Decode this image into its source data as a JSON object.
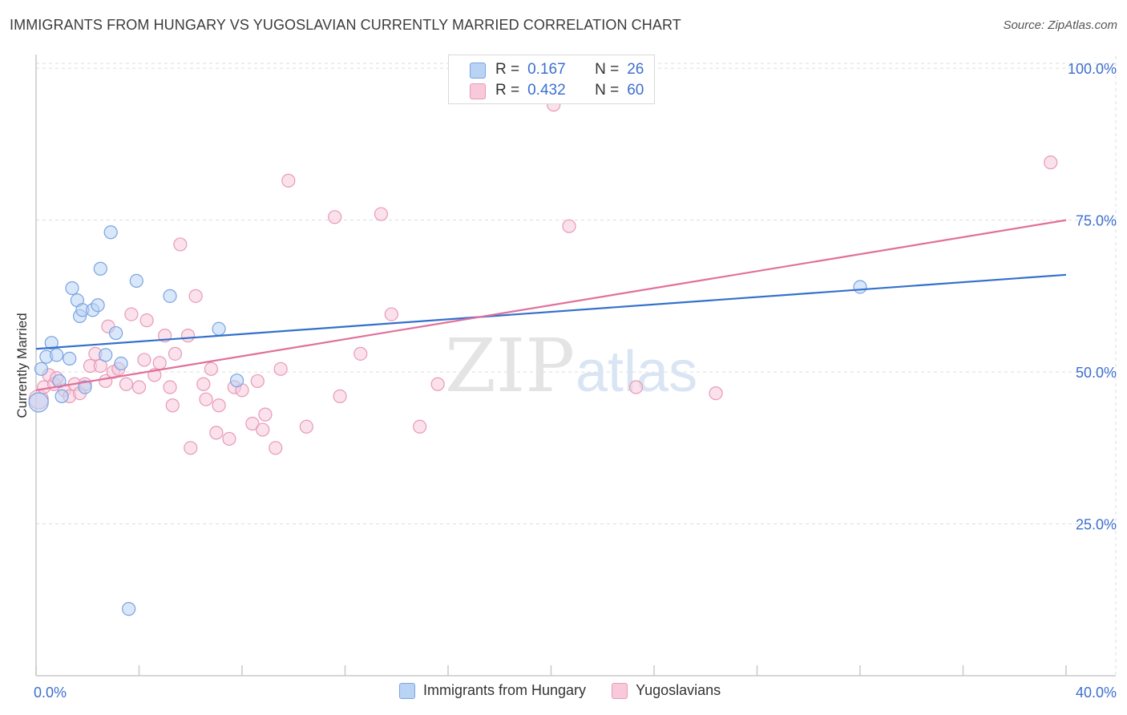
{
  "title": "IMMIGRANTS FROM HUNGARY VS YUGOSLAVIAN CURRENTLY MARRIED CORRELATION CHART",
  "source": "Source: ZipAtlas.com",
  "watermark": {
    "zip": "ZIP",
    "atlas": "atlas"
  },
  "colors": {
    "blue_fill": "#b9d3f5",
    "blue_stroke": "#7aa3e0",
    "blue_line": "#3370cc",
    "pink_fill": "#f8c9da",
    "pink_stroke": "#e79ab6",
    "pink_line": "#e0709a",
    "tick_text": "#3d6fcf",
    "grid": "#dddddd"
  },
  "stats_legend": {
    "r_label": "R =",
    "n_label": "N =",
    "rows": [
      {
        "r": "0.167",
        "n": "26"
      },
      {
        "r": "0.432",
        "n": "60"
      }
    ]
  },
  "chart_data": {
    "type": "scatter",
    "title": "IMMIGRANTS FROM HUNGARY VS YUGOSLAVIAN CURRENTLY MARRIED CORRELATION CHART",
    "xlabel": "",
    "ylabel": "Currently Married",
    "xlim": [
      0,
      40
    ],
    "ylim": [
      0,
      102
    ],
    "x_tick_labels": [
      "0.0%",
      "40.0%"
    ],
    "x_tick_values": [
      0,
      40
    ],
    "y_tick_labels": [
      "25.0%",
      "50.0%",
      "75.0%",
      "100.0%"
    ],
    "y_tick_values": [
      25,
      50,
      75,
      100
    ],
    "grid": true,
    "legend_position": "bottom-center",
    "series": [
      {
        "name": "Immigrants from Hungary",
        "color": "#b9d3f5",
        "trend": {
          "x": [
            0,
            40
          ],
          "y": [
            53.8,
            66.0
          ]
        },
        "points": [
          [
            0.1,
            45.0
          ],
          [
            0.2,
            50.5
          ],
          [
            0.4,
            52.5
          ],
          [
            0.6,
            54.8
          ],
          [
            0.8,
            52.8
          ],
          [
            0.9,
            48.5
          ],
          [
            1.0,
            46.0
          ],
          [
            1.3,
            52.2
          ],
          [
            1.4,
            63.8
          ],
          [
            1.6,
            61.8
          ],
          [
            1.7,
            59.2
          ],
          [
            1.8,
            60.2
          ],
          [
            1.9,
            47.5
          ],
          [
            2.2,
            60.2
          ],
          [
            2.4,
            61.0
          ],
          [
            2.5,
            67.0
          ],
          [
            2.7,
            52.8
          ],
          [
            2.9,
            73.0
          ],
          [
            3.1,
            56.4
          ],
          [
            3.3,
            51.4
          ],
          [
            3.6,
            11.0
          ],
          [
            3.9,
            65.0
          ],
          [
            5.2,
            62.5
          ],
          [
            7.1,
            57.1
          ],
          [
            7.8,
            48.6
          ],
          [
            32.0,
            64.0
          ]
        ]
      },
      {
        "name": "Yugoslavians",
        "color": "#f8c9da",
        "trend": {
          "x": [
            0,
            40
          ],
          "y": [
            47.0,
            75.0
          ]
        },
        "points": [
          [
            0.1,
            45.5
          ],
          [
            0.3,
            47.5
          ],
          [
            0.5,
            49.5
          ],
          [
            0.7,
            48.0
          ],
          [
            0.8,
            49.0
          ],
          [
            1.1,
            47.0
          ],
          [
            1.3,
            46.0
          ],
          [
            1.5,
            48.0
          ],
          [
            1.7,
            46.5
          ],
          [
            1.9,
            48.0
          ],
          [
            2.1,
            51.0
          ],
          [
            2.3,
            53.0
          ],
          [
            2.5,
            51.0
          ],
          [
            2.7,
            48.5
          ],
          [
            2.8,
            57.5
          ],
          [
            3.0,
            50.0
          ],
          [
            3.2,
            50.5
          ],
          [
            3.5,
            48.0
          ],
          [
            3.7,
            59.5
          ],
          [
            4.0,
            47.5
          ],
          [
            4.2,
            52.0
          ],
          [
            4.3,
            58.5
          ],
          [
            4.6,
            49.5
          ],
          [
            4.8,
            51.5
          ],
          [
            5.0,
            56.0
          ],
          [
            5.2,
            47.5
          ],
          [
            5.3,
            44.5
          ],
          [
            5.4,
            53.0
          ],
          [
            5.6,
            71.0
          ],
          [
            5.9,
            56.0
          ],
          [
            6.0,
            37.5
          ],
          [
            6.2,
            62.5
          ],
          [
            6.5,
            48.0
          ],
          [
            6.6,
            45.5
          ],
          [
            6.8,
            50.5
          ],
          [
            7.0,
            40.0
          ],
          [
            7.1,
            44.5
          ],
          [
            7.5,
            39.0
          ],
          [
            7.7,
            47.5
          ],
          [
            8.0,
            47.0
          ],
          [
            8.4,
            41.5
          ],
          [
            8.6,
            48.5
          ],
          [
            8.8,
            40.5
          ],
          [
            8.9,
            43.0
          ],
          [
            9.3,
            37.5
          ],
          [
            9.5,
            50.5
          ],
          [
            9.8,
            81.5
          ],
          [
            10.5,
            41.0
          ],
          [
            11.6,
            75.5
          ],
          [
            11.8,
            46.0
          ],
          [
            12.6,
            53.0
          ],
          [
            13.4,
            76.0
          ],
          [
            13.8,
            59.5
          ],
          [
            14.9,
            41.0
          ],
          [
            15.6,
            48.0
          ],
          [
            20.1,
            94.0
          ],
          [
            20.7,
            74.0
          ],
          [
            23.3,
            47.5
          ],
          [
            26.4,
            46.5
          ],
          [
            39.4,
            84.5
          ]
        ]
      }
    ]
  }
}
